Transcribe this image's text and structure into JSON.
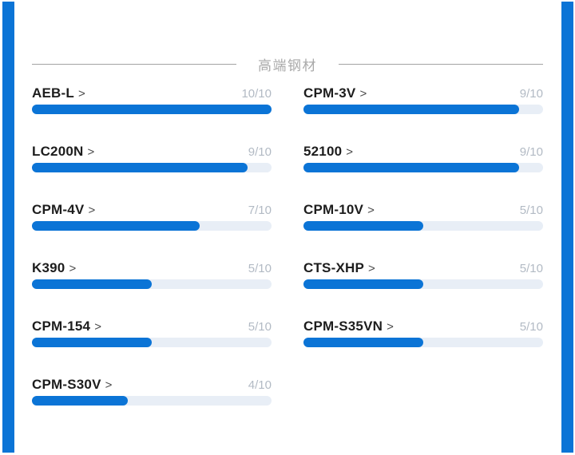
{
  "header": {
    "title": "高端钢材"
  },
  "ui": {
    "chevron": ">"
  },
  "colors": {
    "accent_blue": "#0b74d6",
    "track_gray": "#e8eef6",
    "title_gray": "#a9a9a9",
    "rating_gray": "#b2bac4",
    "name_dark": "#1d1d1d"
  },
  "columns": {
    "left": [
      {
        "name": "AEB-L",
        "score": "10/10",
        "percent": 100
      },
      {
        "name": "LC200N",
        "score": "9/10",
        "percent": 90
      },
      {
        "name": "CPM-4V",
        "score": "7/10",
        "percent": 70
      },
      {
        "name": "K390",
        "score": "5/10",
        "percent": 50
      },
      {
        "name": "CPM-154",
        "score": "5/10",
        "percent": 50
      },
      {
        "name": "CPM-S30V",
        "score": "4/10",
        "percent": 40
      }
    ],
    "right": [
      {
        "name": "CPM-3V",
        "score": "9/10",
        "percent": 90
      },
      {
        "name": "52100",
        "score": "9/10",
        "percent": 90
      },
      {
        "name": "CPM-10V",
        "score": "5/10",
        "percent": 50
      },
      {
        "name": "CTS-XHP",
        "score": "5/10",
        "percent": 50
      },
      {
        "name": "CPM-S35VN",
        "score": "5/10",
        "percent": 50
      }
    ]
  }
}
